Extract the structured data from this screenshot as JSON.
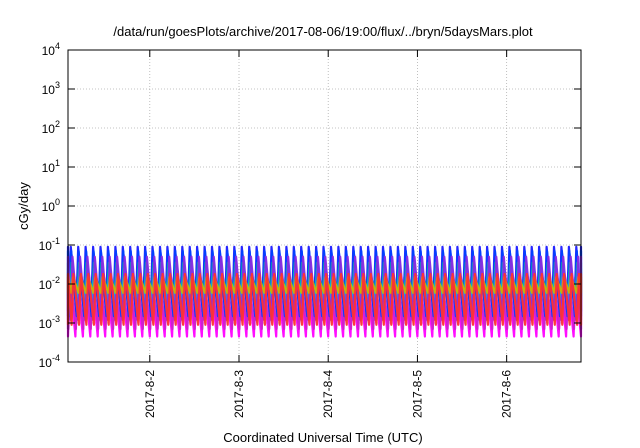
{
  "chart_data": {
    "type": "line",
    "title": "/data/run/goesPlots/archive/2017-08-06/19:00/flux/../bryn/5daysMars.plot",
    "xlabel": "Coordinated Universal Time (UTC)",
    "ylabel": "cGy/day",
    "yscale": "log",
    "ylim": [
      0.0001,
      10000
    ],
    "y_ticks": [
      {
        "value": 0.0001,
        "base": "10",
        "exp": "-4"
      },
      {
        "value": 0.001,
        "base": "10",
        "exp": "-3"
      },
      {
        "value": 0.01,
        "base": "10",
        "exp": "-2"
      },
      {
        "value": 0.1,
        "base": "10",
        "exp": "-1"
      },
      {
        "value": 1,
        "base": "10",
        "exp": "0"
      },
      {
        "value": 10,
        "base": "10",
        "exp": "1"
      },
      {
        "value": 100,
        "base": "10",
        "exp": "2"
      },
      {
        "value": 1000,
        "base": "10",
        "exp": "3"
      },
      {
        "value": 10000,
        "base": "10",
        "exp": "4"
      }
    ],
    "xlim": [
      "2017-08-01T02:00",
      "2017-08-06T20:00"
    ],
    "x_ticks": [
      {
        "value": "2017-08-02T00:00",
        "label": "2017-8-2"
      },
      {
        "value": "2017-08-03T00:00",
        "label": "2017-8-3"
      },
      {
        "value": "2017-08-04T00:00",
        "label": "2017-8-4"
      },
      {
        "value": "2017-08-05T00:00",
        "label": "2017-8-5"
      },
      {
        "value": "2017-08-06T00:00",
        "label": "2017-8-6"
      }
    ],
    "grid": true,
    "series_pattern": {
      "period_hours": 2.0,
      "peak_rise_hours": 0.5,
      "bands": [
        {
          "color": "#ff00ff",
          "peak": 0.015,
          "trough": 0.00045
        },
        {
          "color": "#cc22cc",
          "peak": 0.02,
          "trough": 0.0007
        },
        {
          "color": "#1a1aff",
          "peak": 0.09,
          "trough": 0.002
        },
        {
          "color": "#0040ff",
          "peak": 0.07,
          "trough": 0.0015
        },
        {
          "color": "#00a6a6",
          "peak": 0.035,
          "trough": 0.005
        },
        {
          "color": "#00c8e0",
          "peak": 0.025,
          "trough": 0.004
        },
        {
          "color": "#8a2be2",
          "peak": 0.05,
          "trough": 0.0012
        },
        {
          "color": "#c8b400",
          "peak": 0.015,
          "trough": 0.006
        },
        {
          "color": "#ff3030",
          "peak": 0.018,
          "trough": 0.0009
        }
      ]
    }
  }
}
